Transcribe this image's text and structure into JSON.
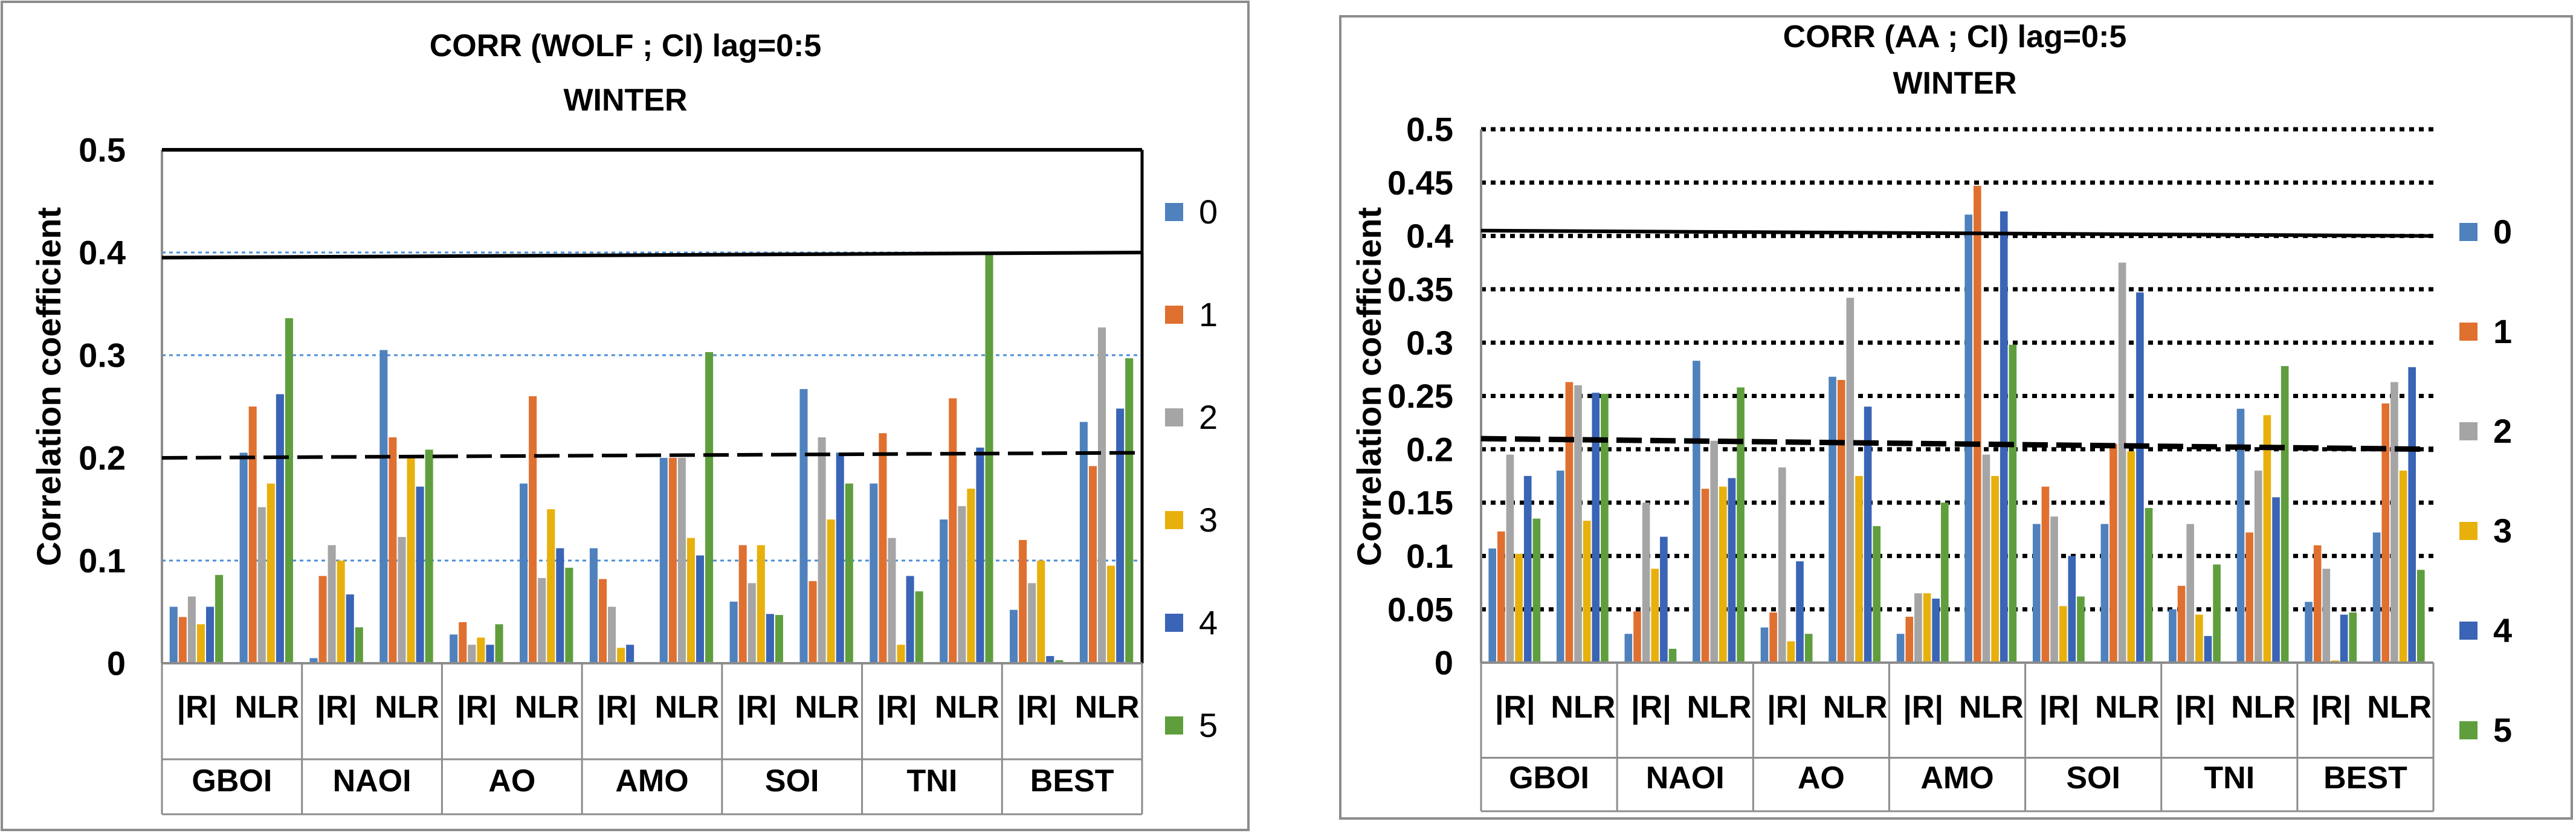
{
  "chart_data": [
    {
      "type": "bar",
      "title": "CORR (WOLF ; CI) lag=0:5",
      "subtitle": "WINTER",
      "ylabel": "Correlation coefficient",
      "ylim": [
        0,
        0.5
      ],
      "yticks": [
        "0",
        "0.1",
        "0.2",
        "0.3",
        "0.4",
        "0.5"
      ],
      "groups": [
        "GBOI",
        "NAOI",
        "AO",
        "AMO",
        "SOI",
        "TNI",
        "BEST"
      ],
      "subcategories": [
        "|R|",
        "NLR"
      ],
      "legend_position": "right",
      "series": [
        {
          "name": "0",
          "color": "#4f81bd",
          "values": [
            0.055,
            0.205,
            0.005,
            0.305,
            0.028,
            0.175,
            0.112,
            0.2,
            0.06,
            0.267,
            0.175,
            0.14,
            0.052,
            0.235
          ]
        },
        {
          "name": "1",
          "color": "#e0702f",
          "values": [
            0.045,
            0.25,
            0.085,
            0.22,
            0.04,
            0.26,
            0.082,
            0.2,
            0.115,
            0.08,
            0.224,
            0.258,
            0.12,
            0.192
          ]
        },
        {
          "name": "2",
          "color": "#a5a5a5",
          "values": [
            0.065,
            0.152,
            0.115,
            0.123,
            0.018,
            0.083,
            0.055,
            0.2,
            0.078,
            0.22,
            0.122,
            0.153,
            0.078,
            0.327
          ]
        },
        {
          "name": "3",
          "color": "#e8b00c",
          "values": [
            0.038,
            0.175,
            0.1,
            0.2,
            0.025,
            0.15,
            0.015,
            0.122,
            0.115,
            0.14,
            0.018,
            0.17,
            0.1,
            0.095
          ]
        },
        {
          "name": "4",
          "color": "#3a64b5",
          "values": [
            0.055,
            0.262,
            0.067,
            0.172,
            0.018,
            0.112,
            0.018,
            0.105,
            0.048,
            0.205,
            0.085,
            0.21,
            0.007,
            0.248
          ]
        },
        {
          "name": "5",
          "color": "#5f9e3d",
          "values": [
            0.086,
            0.336,
            0.035,
            0.208,
            0.038,
            0.093,
            0.0,
            0.303,
            0.047,
            0.175,
            0.07,
            0.4,
            0.003,
            0.297
          ]
        }
      ],
      "reference_lines": [
        {
          "style": "solid",
          "values": [
            0.395,
            0.4
          ]
        },
        {
          "style": "dashed",
          "values": [
            0.2,
            0.205
          ]
        }
      ],
      "gridlines": [
        0.1,
        0.3,
        0.4
      ]
    },
    {
      "type": "bar",
      "title": "CORR (AA ; CI) lag=0:5",
      "subtitle": "WINTER",
      "ylabel": "Correlation coefficient",
      "ylim": [
        0,
        0.5
      ],
      "yticks": [
        "0",
        "0.05",
        "0.1",
        "0.15",
        "0.2",
        "0.25",
        "0.3",
        "0.35",
        "0.4",
        "0.45",
        "0.5"
      ],
      "groups": [
        "GBOI",
        "NAOI",
        "AO",
        "AMO",
        "SOI",
        "TNI",
        "BEST"
      ],
      "subcategories": [
        "|R|",
        "NLR"
      ],
      "legend_position": "right",
      "series": [
        {
          "name": "0",
          "color": "#4f81bd",
          "values": [
            0.107,
            0.18,
            0.027,
            0.283,
            0.033,
            0.268,
            0.027,
            0.42,
            0.13,
            0.13,
            0.05,
            0.238,
            0.057,
            0.122
          ]
        },
        {
          "name": "1",
          "color": "#e0702f",
          "values": [
            0.123,
            0.263,
            0.048,
            0.163,
            0.047,
            0.265,
            0.043,
            0.447,
            0.165,
            0.205,
            0.072,
            0.122,
            0.11,
            0.243
          ]
        },
        {
          "name": "2",
          "color": "#a5a5a5",
          "values": [
            0.195,
            0.26,
            0.15,
            0.208,
            0.183,
            0.342,
            0.065,
            0.195,
            0.137,
            0.375,
            0.13,
            0.18,
            0.088,
            0.263
          ]
        },
        {
          "name": "3",
          "color": "#e8b00c",
          "values": [
            0.102,
            0.133,
            0.088,
            0.165,
            0.02,
            0.175,
            0.065,
            0.175,
            0.053,
            0.198,
            0.045,
            0.232,
            0.002,
            0.18
          ]
        },
        {
          "name": "4",
          "color": "#3a64b5",
          "values": [
            0.175,
            0.253,
            0.118,
            0.173,
            0.095,
            0.24,
            0.06,
            0.423,
            0.1,
            0.347,
            0.025,
            0.155,
            0.045,
            0.277
          ]
        },
        {
          "name": "5",
          "color": "#5f9e3d",
          "values": [
            0.135,
            0.252,
            0.013,
            0.258,
            0.027,
            0.128,
            0.15,
            0.298,
            0.062,
            0.145,
            0.092,
            0.278,
            0.047,
            0.087
          ]
        }
      ],
      "reference_lines": [
        {
          "style": "solid",
          "values": [
            0.405,
            0.4
          ]
        },
        {
          "style": "dashed",
          "values": [
            0.21,
            0.2
          ]
        }
      ],
      "gridlines": [
        0.05,
        0.1,
        0.15,
        0.2,
        0.25,
        0.3,
        0.35,
        0.4,
        0.45,
        0.5
      ]
    }
  ]
}
